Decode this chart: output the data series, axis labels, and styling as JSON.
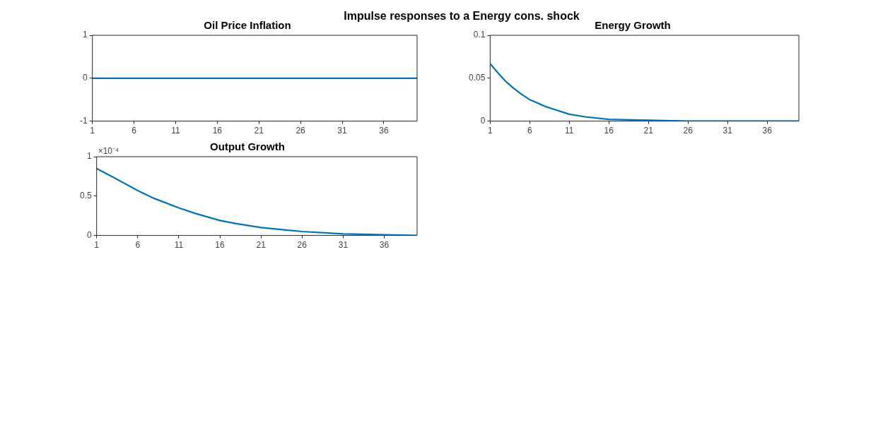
{
  "chart_data": [
    {
      "type": "line",
      "title": "Impulse responses to a Energy cons. shock",
      "subtitle": "Oil Price Inflation",
      "xlim": [
        1,
        40
      ],
      "xticks": [
        1,
        6,
        11,
        16,
        21,
        26,
        31,
        36
      ],
      "ylim": [
        -1,
        1
      ],
      "yticks": [
        -1,
        0,
        1
      ],
      "series": [
        {
          "color": "#0072bd",
          "x": [
            1,
            5,
            10,
            15,
            20,
            25,
            30,
            35,
            40
          ],
          "values": [
            0,
            0,
            0,
            0,
            0,
            0,
            0,
            0,
            0
          ]
        }
      ]
    },
    {
      "type": "line",
      "title": "Energy Growth",
      "xlim": [
        1,
        40
      ],
      "xticks": [
        1,
        6,
        11,
        16,
        21,
        26,
        31,
        36
      ],
      "ylim": [
        0,
        0.1
      ],
      "yticks": [
        0,
        0.05,
        0.1
      ],
      "series": [
        {
          "color": "#0072bd",
          "x": [
            1,
            2,
            3,
            4,
            5,
            6,
            8,
            11,
            13,
            16,
            21,
            26,
            31,
            40
          ],
          "values": [
            0.067,
            0.056,
            0.046,
            0.038,
            0.031,
            0.025,
            0.017,
            0.008,
            0.005,
            0.002,
            0.001,
            0,
            0,
            0
          ]
        }
      ]
    },
    {
      "type": "line",
      "title": "Output Growth",
      "xlim": [
        1,
        40
      ],
      "xticks": [
        1,
        6,
        11,
        16,
        21,
        26,
        31,
        36
      ],
      "ylim": [
        0,
        1
      ],
      "yticks": [
        0,
        0.5,
        1
      ],
      "annotations": [
        "×10⁻⁴"
      ],
      "series": [
        {
          "color": "#0072bd",
          "x": [
            1,
            3,
            6,
            8,
            11,
            13,
            16,
            18,
            21,
            24,
            26,
            31,
            36,
            40
          ],
          "values": [
            0.85,
            0.74,
            0.57,
            0.47,
            0.35,
            0.28,
            0.19,
            0.15,
            0.1,
            0.07,
            0.05,
            0.02,
            0.01,
            0
          ]
        }
      ]
    }
  ]
}
